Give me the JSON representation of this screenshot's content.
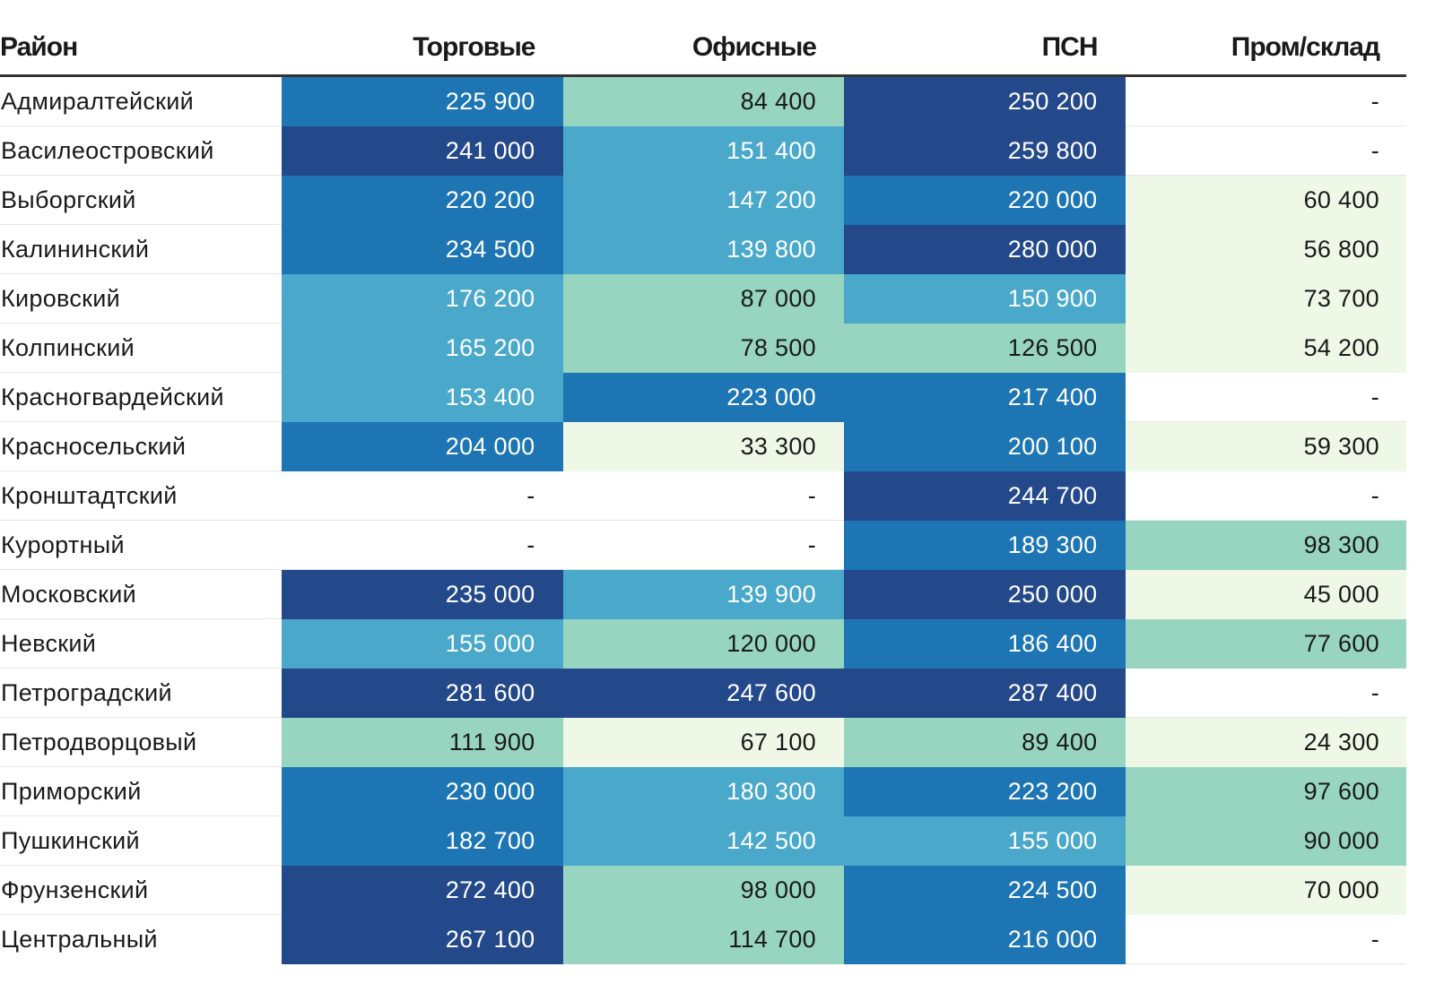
{
  "chart_data": {
    "type": "table",
    "title": "",
    "columns": [
      "Район",
      "Торговые",
      "Офисные",
      "ПСН",
      "Пром/склад"
    ],
    "rows": [
      {
        "district": "Адмиралтейский",
        "values": [
          "225 900",
          "84 400",
          "250 200",
          "-"
        ],
        "levels": [
          3,
          1,
          4,
          0
        ]
      },
      {
        "district": "Василеостровский",
        "values": [
          "241 000",
          "151 400",
          "259 800",
          "-"
        ],
        "levels": [
          4,
          2,
          4,
          0
        ]
      },
      {
        "district": "Выборгский",
        "values": [
          "220 200",
          "147 200",
          "220 000",
          "60 400"
        ],
        "levels": [
          3,
          2,
          3,
          0.5
        ]
      },
      {
        "district": "Калининский",
        "values": [
          "234 500",
          "139 800",
          "280 000",
          "56 800"
        ],
        "levels": [
          3,
          2,
          4,
          0.5
        ]
      },
      {
        "district": "Кировский",
        "values": [
          "176 200",
          "87 000",
          "150 900",
          "73 700"
        ],
        "levels": [
          2,
          1,
          2,
          0.5
        ]
      },
      {
        "district": "Колпинский",
        "values": [
          "165 200",
          "78 500",
          "126 500",
          "54 200"
        ],
        "levels": [
          2,
          1,
          1,
          0.5
        ]
      },
      {
        "district": "Красногвардейский",
        "values": [
          "153 400",
          "223 000",
          "217 400",
          "-"
        ],
        "levels": [
          2,
          3,
          3,
          0
        ]
      },
      {
        "district": "Красносельский",
        "values": [
          "204 000",
          "33 300",
          "200 100",
          "59 300"
        ],
        "levels": [
          3,
          0.5,
          3,
          0.5
        ]
      },
      {
        "district": "Кронштадтский",
        "values": [
          "-",
          "-",
          "244 700",
          "-"
        ],
        "levels": [
          0,
          0,
          4,
          0
        ]
      },
      {
        "district": "Курортный",
        "values": [
          "-",
          "-",
          "189 300",
          "98 300"
        ],
        "levels": [
          0,
          0,
          3,
          1
        ]
      },
      {
        "district": "Московский",
        "values": [
          "235 000",
          "139 900",
          "250 000",
          "45 000"
        ],
        "levels": [
          4,
          2,
          4,
          0.5
        ]
      },
      {
        "district": "Невский",
        "values": [
          "155 000",
          "120 000",
          "186 400",
          "77 600"
        ],
        "levels": [
          2,
          1,
          3,
          1
        ]
      },
      {
        "district": "Петроградский",
        "values": [
          "281 600",
          "247 600",
          "287 400",
          "-"
        ],
        "levels": [
          4,
          4,
          4,
          0
        ]
      },
      {
        "district": "Петродворцовый",
        "values": [
          "111 900",
          "67 100",
          "89 400",
          "24 300"
        ],
        "levels": [
          1,
          0.5,
          1,
          0.5
        ]
      },
      {
        "district": "Приморский",
        "values": [
          "230 000",
          "180 300",
          "223 200",
          "97 600"
        ],
        "levels": [
          3,
          2,
          3,
          1
        ]
      },
      {
        "district": "Пушкинский",
        "values": [
          "182 700",
          "142 500",
          "155 000",
          "90 000"
        ],
        "levels": [
          3,
          2,
          2,
          1
        ]
      },
      {
        "district": "Фрунзенский",
        "values": [
          "272 400",
          "98 000",
          "224 500",
          "70 000"
        ],
        "levels": [
          4,
          1,
          3,
          0.5
        ]
      },
      {
        "district": "Центральный",
        "values": [
          "267 100",
          "114 700",
          "216 000",
          "-"
        ],
        "levels": [
          4,
          1,
          3,
          0
        ]
      }
    ],
    "palette": {
      "level_0": "#ffffff",
      "level_0_5": "#eff8e6",
      "level_1": "#97d5c0",
      "level_2": "#4aa8cb",
      "level_3": "#1d75b4",
      "level_4": "#24498b",
      "dark_text": "#1a1a1a",
      "light_text": "#ffffff"
    }
  }
}
